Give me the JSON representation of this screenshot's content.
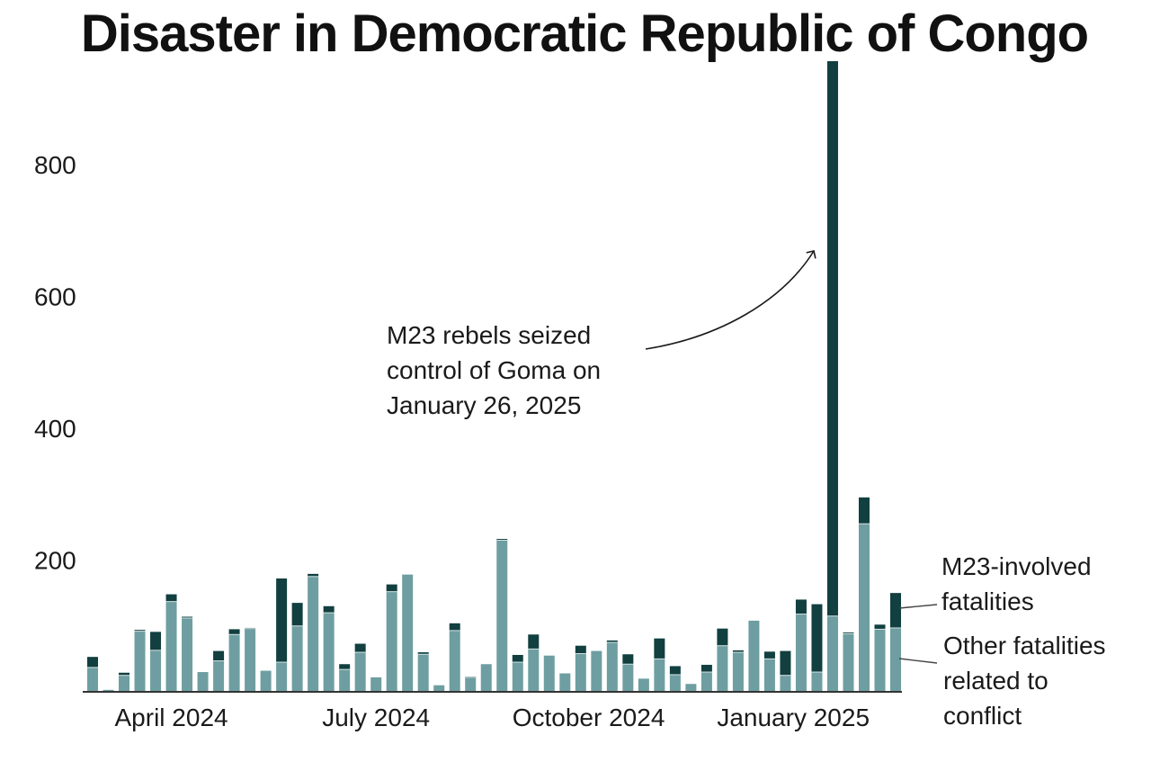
{
  "chart_data": {
    "type": "bar",
    "stacked": true,
    "title": "Disaster in Democratic Republic of Congo",
    "xlabel": "",
    "ylabel": "",
    "ylim": [
      0,
      960
    ],
    "yticks": [
      200,
      400,
      600,
      800
    ],
    "xtick_labels": [
      {
        "label": "April 2024",
        "center_bar": 5
      },
      {
        "label": "July 2024",
        "center_bar": 18
      },
      {
        "label": "October 2024",
        "center_bar": 31.5
      },
      {
        "label": "January 2025",
        "center_bar": 44.5
      }
    ],
    "series": [
      {
        "name": "Other fatalities related to conflict",
        "legend_lines": [
          "Other fatalities",
          "related to",
          "conflict"
        ],
        "color": "#6e9ea1",
        "values": [
          37,
          3,
          25,
          92,
          63,
          137,
          112,
          30,
          47,
          87,
          96,
          32,
          45,
          100,
          175,
          120,
          34,
          60,
          22,
          152,
          178,
          57,
          10,
          93,
          22,
          42,
          230,
          45,
          65,
          55,
          28,
          58,
          62,
          75,
          42,
          20,
          50,
          26,
          12,
          30,
          70,
          60,
          108,
          50,
          25,
          118,
          30,
          115,
          88,
          255,
          95,
          97
        ]
      },
      {
        "name": "M23-involved fatalities",
        "legend_lines": [
          "M23-involved",
          "fatalities"
        ],
        "color": "#123f3f",
        "values": [
          16,
          0,
          4,
          2,
          28,
          11,
          2,
          0,
          15,
          8,
          1,
          0,
          127,
          35,
          4,
          10,
          8,
          13,
          0,
          11,
          0,
          3,
          0,
          11,
          1,
          0,
          2,
          11,
          22,
          0,
          0,
          12,
          0,
          3,
          15,
          0,
          31,
          13,
          0,
          11,
          26,
          3,
          0,
          11,
          37,
          22,
          103,
          842,
          2,
          40,
          7,
          53
        ]
      }
    ],
    "annotation": {
      "lines": [
        "M23 rebels seized",
        "control of Goma on",
        "January 26, 2025"
      ]
    }
  }
}
